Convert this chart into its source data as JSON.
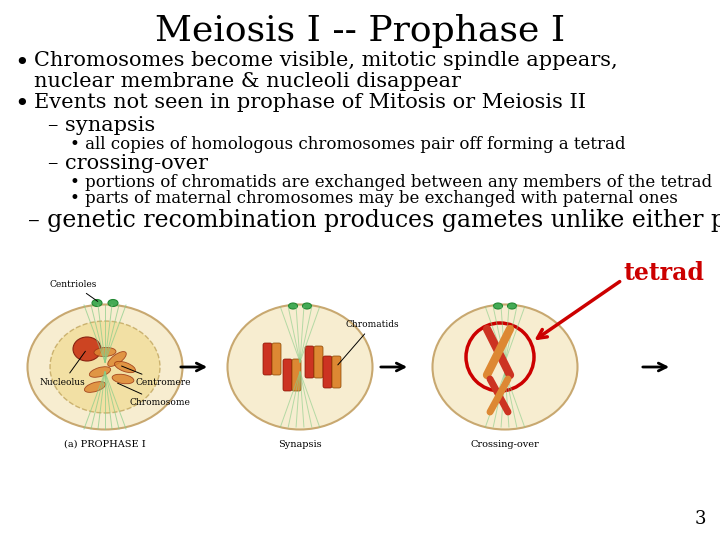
{
  "title": "Meiosis I -- Prophase I",
  "title_fontsize": 26,
  "title_font": "serif",
  "bg_color": "#ffffff",
  "text_color": "#000000",
  "bullet1_line1": "Chromosomes become visible, mitotic spindle appears,",
  "bullet1_line2": "nuclear membrane & nucleoli disappear",
  "bullet2": "Events not seen in prophase of Mitosis or Meiosis II",
  "dash1": "synapsis",
  "sub1": "all copies of homologous chromosomes pair off forming a tetrad",
  "dash2": "crossing-over",
  "sub2a": "portions of chromatids are exchanged between any members of the tetrad",
  "sub2b": "parts of maternal chromosomes may be exchanged with paternal ones",
  "dash3": "genetic recombination produces gametes unlike either parent",
  "tetrad_label": "tetrad",
  "tetrad_color": "#cc0000",
  "page_number": "3",
  "bullet_fontsize": 15,
  "dash_fontsize": 15,
  "sub_fontsize": 12,
  "dash3_fontsize": 17,
  "cell1_labels": [
    "Centrioles",
    "Centromere",
    "Nucleolus",
    "Chromosome",
    "(a) PROPHASE I"
  ],
  "cell2_label": "Synapsis",
  "cell2_sublabel": "Chromatids",
  "cell3_label": "Crossing-over"
}
